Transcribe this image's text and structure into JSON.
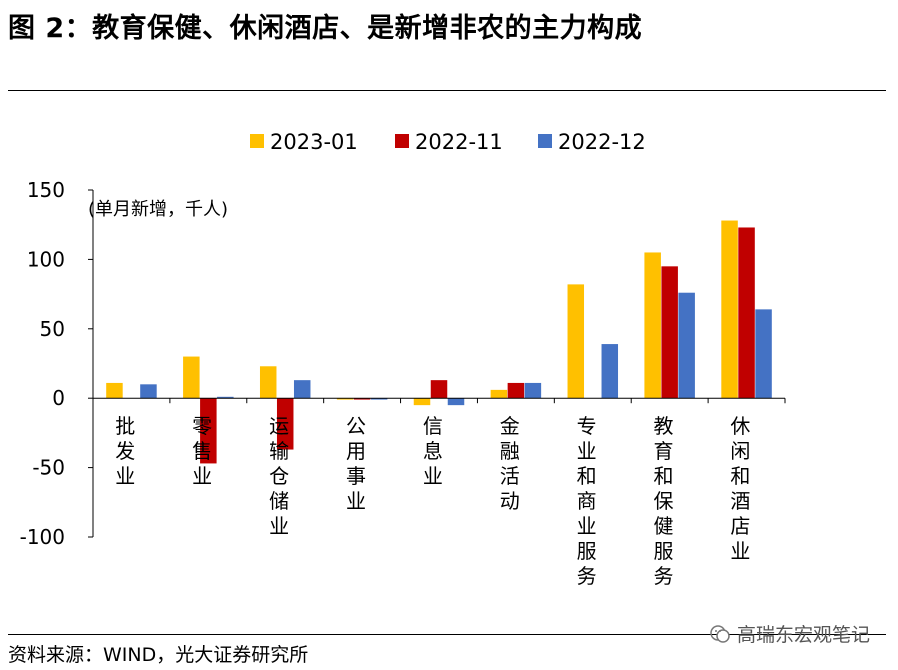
{
  "page": {
    "title": "图 2：教育保健、休闲酒店、是新增非农的主力构成",
    "source": "资料来源：WIND，光大证券研究所",
    "watermark": "高瑞东宏观笔记"
  },
  "chart_data": {
    "type": "bar",
    "title": "图 2：教育保健、休闲酒店、是新增非农的主力构成",
    "unit_note": "(单月新增，千人)",
    "xlabel": "",
    "ylabel": "",
    "ylim": [
      -100,
      150
    ],
    "yticks": [
      150,
      100,
      50,
      0,
      -50,
      -100
    ],
    "grid": false,
    "legend_position": "top",
    "categories": [
      "批发业",
      "零售业",
      "运输仓储业",
      "公用事业",
      "信息业",
      "金融活动",
      "专业和商业服务",
      "教育和保健服务",
      "休闲和酒店业"
    ],
    "series": [
      {
        "name": "2023-01",
        "color": "#FFC000",
        "values": [
          11,
          30,
          23,
          -1,
          -5,
          6,
          82,
          105,
          128
        ]
      },
      {
        "name": "2022-11",
        "color": "#C00000",
        "values": [
          0,
          -47,
          -37,
          -1,
          13,
          11,
          0,
          95,
          123
        ]
      },
      {
        "name": "2022-12",
        "color": "#4472C4",
        "values": [
          10,
          1,
          13,
          -1,
          -5,
          11,
          39,
          76,
          64
        ]
      }
    ]
  }
}
